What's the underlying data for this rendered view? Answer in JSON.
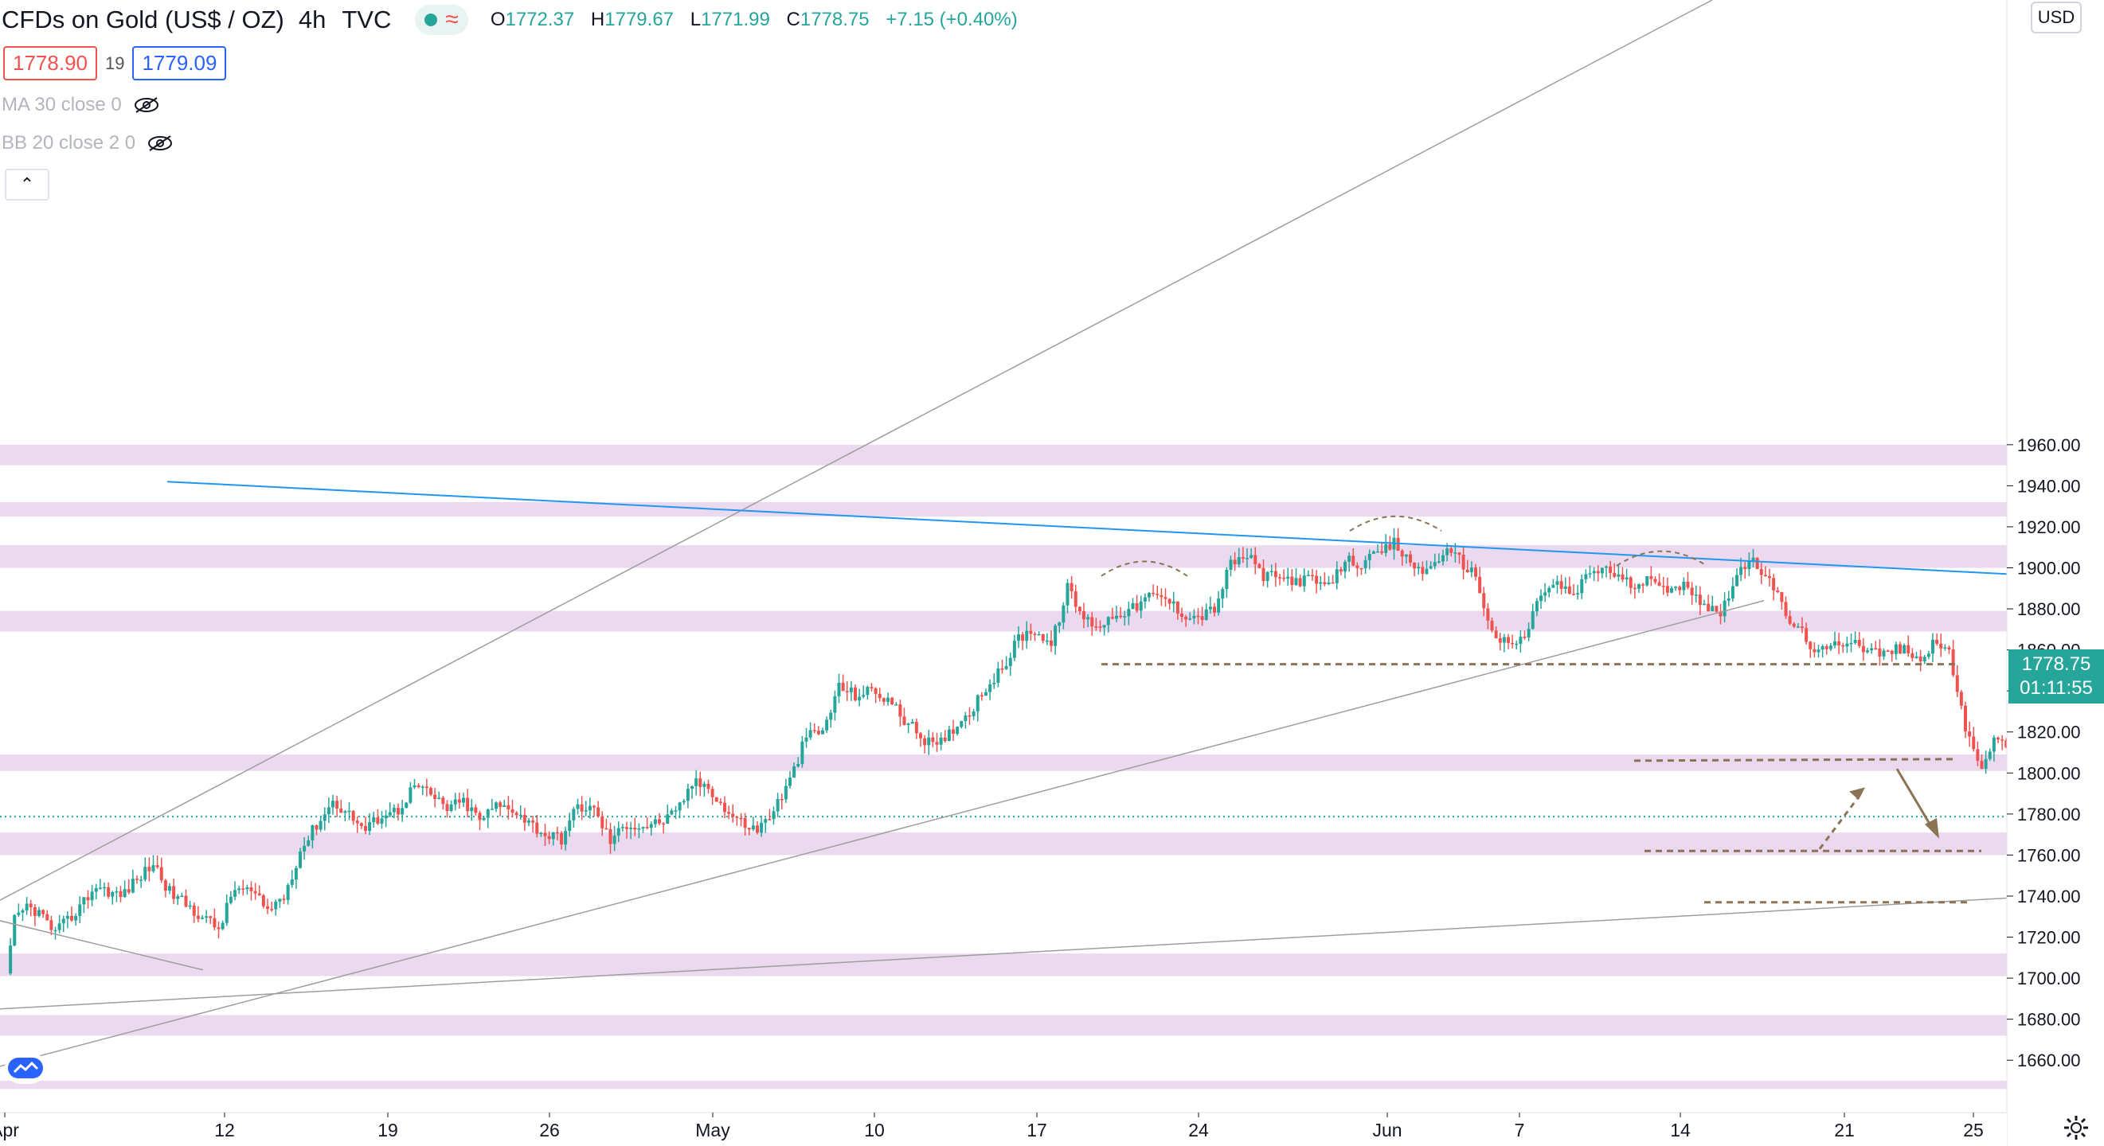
{
  "header": {
    "symbol": "CFDs on Gold (US$ / OZ)",
    "timeframe": "4h",
    "source": "TVC",
    "open_label": "O",
    "open": "1772.37",
    "high_label": "H",
    "high": "1779.67",
    "low_label": "L",
    "low": "1771.99",
    "close_label": "C",
    "close": "1778.75",
    "change": "+7.15 (+0.40%)"
  },
  "trade": {
    "sell_price": "1778.90",
    "spread": "19",
    "buy_price": "1779.09"
  },
  "indicators": [
    {
      "label": "MA 30 close 0",
      "icon": "eye-off-icon"
    },
    {
      "label": "BB 20 close 2 0",
      "icon": "eye-off-icon"
    }
  ],
  "currency": "USD",
  "last_price": "1778.75",
  "countdown": "01:11:55",
  "colors": {
    "up": "#26a69a",
    "down": "#ef5350",
    "zone": "#e8d2ec",
    "trendline_blue": "#2196f3",
    "channel": "#9e9e9e",
    "dashed": "#8b7355"
  },
  "chart_data": {
    "type": "candlestick",
    "title": "CFDs on Gold (US$ / OZ)",
    "ylabel": "USD",
    "ylim": [
      1648,
      1962
    ],
    "y_ticks": [
      "1960.00",
      "1940.00",
      "1920.00",
      "1900.00",
      "1880.00",
      "1860.00",
      "1840.00",
      "1820.00",
      "1800.00",
      "1780.00",
      "1760.00",
      "1740.00",
      "1720.00",
      "1700.00",
      "1680.00",
      "1660.00"
    ],
    "x_ticks": [
      "Apr",
      "12",
      "19",
      "26",
      "May",
      "10",
      "17",
      "24",
      "Jun",
      "7",
      "14",
      "21",
      "25"
    ],
    "zones": [
      [
        1950,
        1960
      ],
      [
        1925,
        1932
      ],
      [
        1900,
        1911
      ],
      [
        1869,
        1879
      ],
      [
        1801,
        1809
      ],
      [
        1760,
        1771
      ],
      [
        1701,
        1712
      ],
      [
        1672,
        1682
      ],
      [
        1646,
        1650
      ]
    ],
    "key_levels": [
      1853,
      1806,
      1762,
      1737
    ],
    "last_close": 1778.75,
    "pattern": "head and shoulders",
    "anchors": [
      [
        0,
        1700
      ],
      [
        2,
        1728
      ],
      [
        5,
        1735
      ],
      [
        8,
        1732
      ],
      [
        12,
        1722
      ],
      [
        16,
        1730
      ],
      [
        22,
        1745
      ],
      [
        28,
        1740
      ],
      [
        32,
        1748
      ],
      [
        36,
        1756
      ],
      [
        40,
        1742
      ],
      [
        44,
        1736
      ],
      [
        48,
        1730
      ],
      [
        52,
        1724
      ],
      [
        56,
        1744
      ],
      [
        60,
        1742
      ],
      [
        64,
        1733
      ],
      [
        68,
        1740
      ],
      [
        72,
        1762
      ],
      [
        76,
        1775
      ],
      [
        80,
        1786
      ],
      [
        84,
        1780
      ],
      [
        88,
        1772
      ],
      [
        92,
        1780
      ],
      [
        96,
        1782
      ],
      [
        100,
        1794
      ],
      [
        104,
        1789
      ],
      [
        108,
        1783
      ],
      [
        112,
        1786
      ],
      [
        116,
        1777
      ],
      [
        120,
        1784
      ],
      [
        124,
        1783
      ],
      [
        128,
        1776
      ],
      [
        132,
        1770
      ],
      [
        136,
        1768
      ],
      [
        140,
        1784
      ],
      [
        144,
        1782
      ],
      [
        148,
        1767
      ],
      [
        152,
        1775
      ],
      [
        156,
        1774
      ],
      [
        160,
        1776
      ],
      [
        164,
        1780
      ],
      [
        168,
        1795
      ],
      [
        172,
        1794
      ],
      [
        176,
        1782
      ],
      [
        180,
        1776
      ],
      [
        184,
        1772
      ],
      [
        188,
        1782
      ],
      [
        192,
        1796
      ],
      [
        196,
        1818
      ],
      [
        200,
        1820
      ],
      [
        204,
        1842
      ],
      [
        208,
        1838
      ],
      [
        212,
        1840
      ],
      [
        216,
        1836
      ],
      [
        220,
        1826
      ],
      [
        224,
        1818
      ],
      [
        228,
        1812
      ],
      [
        232,
        1822
      ],
      [
        236,
        1830
      ],
      [
        240,
        1842
      ],
      [
        244,
        1850
      ],
      [
        248,
        1866
      ],
      [
        252,
        1870
      ],
      [
        256,
        1862
      ],
      [
        260,
        1890
      ],
      [
        264,
        1875
      ],
      [
        268,
        1872
      ],
      [
        272,
        1878
      ],
      [
        276,
        1880
      ],
      [
        280,
        1886
      ],
      [
        284,
        1885
      ],
      [
        288,
        1878
      ],
      [
        292,
        1876
      ],
      [
        296,
        1880
      ],
      [
        300,
        1902
      ],
      [
        304,
        1906
      ],
      [
        308,
        1896
      ],
      [
        312,
        1895
      ],
      [
        316,
        1894
      ],
      [
        320,
        1894
      ],
      [
        324,
        1890
      ],
      [
        328,
        1904
      ],
      [
        332,
        1902
      ],
      [
        336,
        1906
      ],
      [
        340,
        1912
      ],
      [
        344,
        1902
      ],
      [
        348,
        1898
      ],
      [
        352,
        1908
      ],
      [
        356,
        1904
      ],
      [
        360,
        1896
      ],
      [
        364,
        1868
      ],
      [
        368,
        1862
      ],
      [
        372,
        1866
      ],
      [
        376,
        1888
      ],
      [
        380,
        1892
      ],
      [
        384,
        1886
      ],
      [
        388,
        1898
      ],
      [
        392,
        1900
      ],
      [
        396,
        1894
      ],
      [
        400,
        1890
      ],
      [
        404,
        1896
      ],
      [
        408,
        1888
      ],
      [
        412,
        1892
      ],
      [
        416,
        1882
      ],
      [
        420,
        1878
      ],
      [
        424,
        1898
      ],
      [
        428,
        1902
      ],
      [
        432,
        1896
      ],
      [
        436,
        1876
      ],
      [
        440,
        1868
      ],
      [
        444,
        1858
      ],
      [
        448,
        1862
      ],
      [
        452,
        1866
      ],
      [
        456,
        1860
      ],
      [
        460,
        1858
      ],
      [
        464,
        1861
      ],
      [
        468,
        1855
      ],
      [
        472,
        1862
      ],
      [
        476,
        1860
      ],
      [
        480,
        1820
      ],
      [
        484,
        1804
      ],
      [
        488,
        1818
      ],
      [
        492,
        1806
      ],
      [
        496,
        1775
      ],
      [
        500,
        1770
      ],
      [
        504,
        1770
      ],
      [
        505,
        1778.75
      ]
    ]
  }
}
